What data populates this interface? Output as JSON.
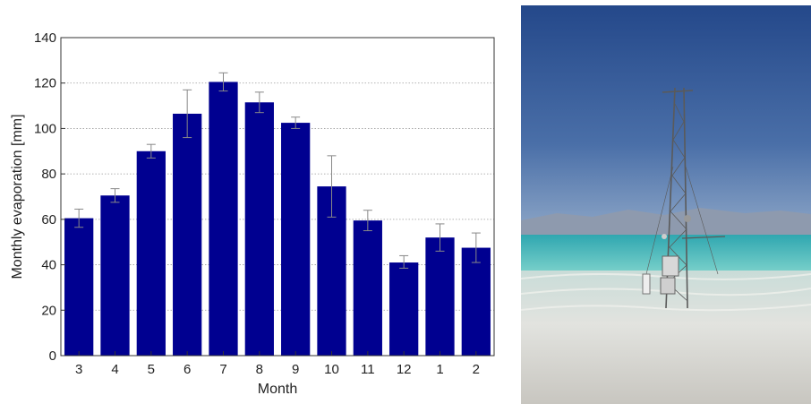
{
  "chart_data": {
    "type": "bar",
    "categories": [
      "3",
      "4",
      "5",
      "6",
      "7",
      "8",
      "9",
      "10",
      "11",
      "12",
      "1",
      "2"
    ],
    "values": [
      60.5,
      70.5,
      90,
      106.5,
      120.5,
      111.5,
      102.5,
      74.5,
      59.5,
      41,
      52,
      47.5
    ],
    "error_low": [
      56.5,
      67.5,
      87,
      96,
      116.5,
      107,
      100,
      61,
      55,
      38.5,
      46,
      41
    ],
    "error_high": [
      64.5,
      73.5,
      93,
      117,
      124.5,
      116,
      105,
      88,
      64,
      44,
      58,
      54
    ],
    "xlabel": "Month",
    "ylabel": "Monthly evaporation [mm]",
    "ylim": [
      0,
      140
    ],
    "yticks": [
      0,
      20,
      40,
      60,
      80,
      100,
      120,
      140
    ],
    "grid": "horizontal dotted",
    "bar_color": "#000090",
    "error_bar_color": "#888888"
  },
  "photo": {
    "subject": "meteorological-tower-in-shallow-water",
    "sky_color": "#2b4f8d",
    "water_color": "#5ec6c2",
    "salt_color": "#dcdcd6"
  }
}
